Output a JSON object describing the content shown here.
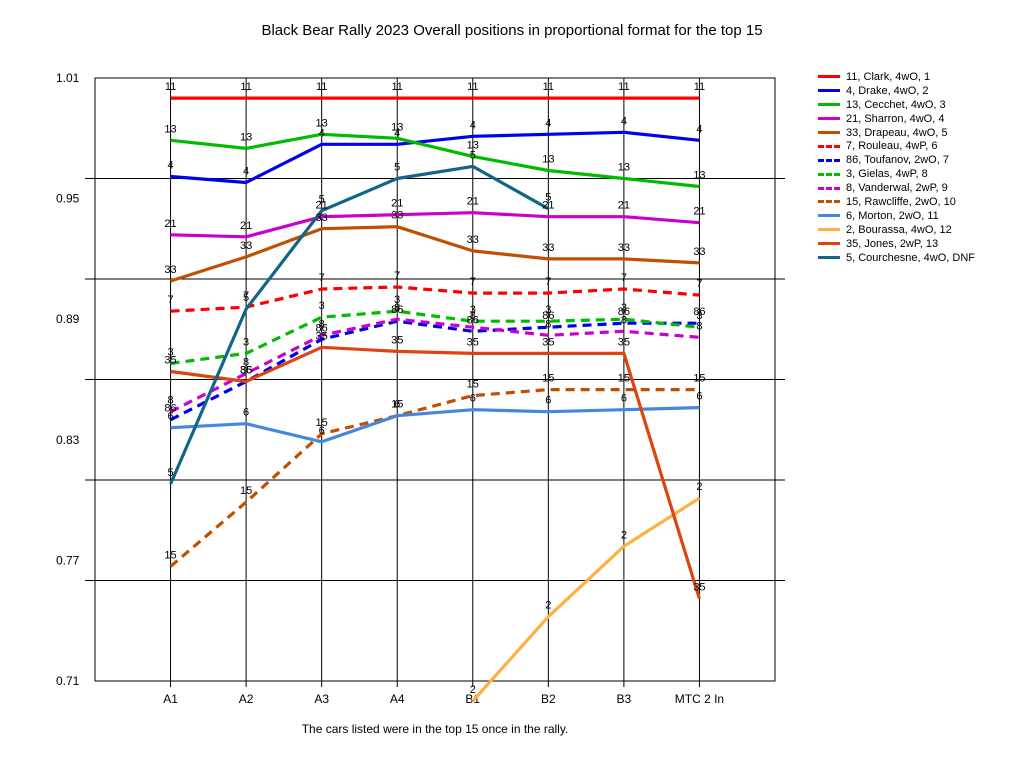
{
  "chart_data": {
    "type": "line",
    "title": "Black Bear Rally 2023  Overall positions in proportional format for the top 15",
    "footnote": "The cars listed were in the top 15 once in the rally.",
    "xlabel": "",
    "ylabel": "",
    "categories": [
      "A1",
      "A2",
      "A3",
      "A4",
      "B1",
      "B2",
      "B3",
      "MTC 2 In"
    ],
    "ylim": [
      0.71,
      1.01
    ],
    "yticks": [
      1.01,
      0.95,
      0.89,
      0.83,
      0.77,
      0.71
    ],
    "y_tick_labels": [
      "1.01",
      "0.95",
      "0.89",
      "0.83",
      "0.77",
      "0.71"
    ],
    "grid": true,
    "legend_position": "right",
    "series": [
      {
        "name": "11, Clark, 4wO, 1",
        "label": "11",
        "color": "#ff0000",
        "dashed": false,
        "values": [
          1.0,
          1.0,
          1.0,
          1.0,
          1.0,
          1.0,
          1.0,
          1.0
        ]
      },
      {
        "name": "4, Drake, 4wO, 2",
        "label": "4",
        "color": "#0000ee",
        "dashed": false,
        "values": [
          0.961,
          0.958,
          0.977,
          0.977,
          0.981,
          0.982,
          0.983,
          0.979
        ]
      },
      {
        "name": "13, Cecchet, 4wO, 3",
        "label": "13",
        "color": "#00bb00",
        "dashed": false,
        "values": [
          0.979,
          0.975,
          0.982,
          0.98,
          0.971,
          0.964,
          0.96,
          0.956
        ]
      },
      {
        "name": "21, Sharron, 4wO, 4",
        "label": "21",
        "color": "#cc00cc",
        "dashed": false,
        "values": [
          0.932,
          0.931,
          0.941,
          0.942,
          0.943,
          0.941,
          0.941,
          0.938
        ]
      },
      {
        "name": "33, Drapeau, 4wO, 5",
        "label": "33",
        "color": "#c05000",
        "dashed": false,
        "values": [
          0.909,
          0.921,
          0.935,
          0.936,
          0.924,
          0.92,
          0.92,
          0.918
        ]
      },
      {
        "name": "7, Rouleau, 4wP, 6",
        "label": "7",
        "color": "#ff0000",
        "dashed": true,
        "values": [
          0.894,
          0.896,
          0.905,
          0.906,
          0.903,
          0.903,
          0.905,
          0.902
        ]
      },
      {
        "name": "86, Toufanov, 2wO, 7",
        "label": "86",
        "color": "#0000ee",
        "dashed": true,
        "values": [
          0.84,
          0.859,
          0.88,
          0.889,
          0.884,
          0.886,
          0.888,
          0.888
        ]
      },
      {
        "name": "3, Gielas, 4wP, 8",
        "label": "3",
        "color": "#00bb00",
        "dashed": true,
        "values": [
          0.868,
          0.873,
          0.891,
          0.894,
          0.889,
          0.889,
          0.89,
          0.886
        ]
      },
      {
        "name": "8, Vanderwal, 2wP, 9",
        "label": "8",
        "color": "#cc00cc",
        "dashed": true,
        "values": [
          0.844,
          0.863,
          0.882,
          0.89,
          0.886,
          0.882,
          0.884,
          0.881
        ]
      },
      {
        "name": "15, Rawcliffe, 2wO, 10",
        "label": "15",
        "color": "#c05000",
        "dashed": true,
        "values": [
          0.767,
          0.799,
          0.833,
          0.842,
          0.852,
          0.855,
          0.855,
          0.855
        ]
      },
      {
        "name": "6, Morton, 2wO, 11",
        "label": "6",
        "color": "#4488dd",
        "dashed": false,
        "values": [
          0.836,
          0.838,
          0.829,
          0.842,
          0.845,
          0.844,
          0.845,
          0.846
        ]
      },
      {
        "name": "2, Bourassa, 4wO, 12",
        "label": "2",
        "color": "#ffb040",
        "dashed": false,
        "values": [
          null,
          null,
          null,
          null,
          0.7,
          0.742,
          0.777,
          0.801
        ]
      },
      {
        "name": "35, Jones, 2wP, 13",
        "label": "35",
        "color": "#dd4411",
        "dashed": false,
        "values": [
          0.864,
          0.859,
          0.876,
          0.874,
          0.873,
          0.873,
          0.873,
          0.751
        ]
      },
      {
        "name": "5, Courchesne, 4wO,  DNF",
        "label": "5",
        "color": "#116688",
        "dashed": false,
        "values": [
          0.808,
          0.895,
          0.944,
          0.96,
          0.966,
          0.945,
          null,
          null
        ]
      }
    ]
  }
}
